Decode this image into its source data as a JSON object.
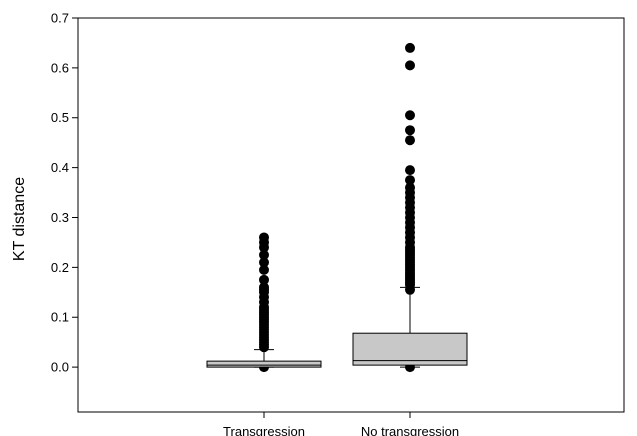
{
  "chart_data": {
    "type": "box",
    "ylabel": "KT distance",
    "xlabel": "",
    "ylim": [
      -0.09,
      0.7
    ],
    "yticks": [
      "0.0",
      "0.1",
      "0.2",
      "0.3",
      "0.4",
      "0.5",
      "0.6",
      "0.7"
    ],
    "grid": false,
    "legend": "none",
    "box_color": "#c8c8c8",
    "categories": [
      "Transgression",
      "No transgression"
    ],
    "boxes": [
      {
        "name": "Transgression",
        "q1": 0.0,
        "median": 0.004,
        "q3": 0.012,
        "whisker_low": 0.0,
        "whisker_high": 0.035,
        "outliers": [
          0.0,
          0.04,
          0.045,
          0.05,
          0.055,
          0.06,
          0.065,
          0.07,
          0.075,
          0.08,
          0.085,
          0.09,
          0.095,
          0.1,
          0.105,
          0.11,
          0.115,
          0.12,
          0.13,
          0.14,
          0.15,
          0.155,
          0.16,
          0.175,
          0.195,
          0.21,
          0.225,
          0.24,
          0.25,
          0.26
        ]
      },
      {
        "name": "No transgression",
        "q1": 0.004,
        "median": 0.013,
        "q3": 0.068,
        "whisker_low": 0.0,
        "whisker_high": 0.16,
        "outliers": [
          0.0,
          0.155,
          0.165,
          0.17,
          0.175,
          0.18,
          0.185,
          0.19,
          0.195,
          0.2,
          0.205,
          0.21,
          0.215,
          0.22,
          0.225,
          0.23,
          0.235,
          0.24,
          0.25,
          0.26,
          0.27,
          0.28,
          0.29,
          0.3,
          0.31,
          0.32,
          0.33,
          0.34,
          0.35,
          0.36,
          0.375,
          0.395,
          0.455,
          0.475,
          0.505,
          0.605,
          0.64
        ]
      }
    ]
  }
}
